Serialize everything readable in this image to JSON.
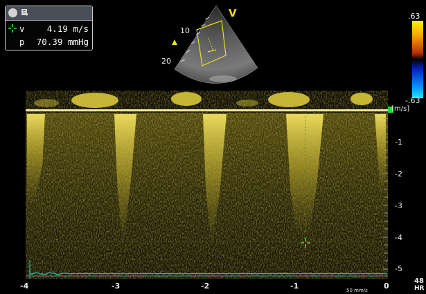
{
  "measurement": {
    "velocity_label": "v",
    "velocity_value": "4.19 m/s",
    "pressure_label": "p",
    "pressure_value": "70.39 mmHg"
  },
  "sector": {
    "marker": "V",
    "depth_10": "10",
    "depth_20": "20"
  },
  "color_bar": {
    "top": ".63",
    "bottom": "-.63"
  },
  "spectrum": {
    "unit": "[m/s]",
    "y_ticks": [
      "-1",
      "-2",
      "-3",
      "-4",
      "-5"
    ],
    "x_ticks": [
      "-4",
      "-3",
      "-2",
      "-1",
      "0"
    ],
    "sweep_speed": "50 mm/s",
    "hr_value": "48",
    "hr_label": "HR"
  },
  "colors": {
    "doppler": "#d2c22a",
    "ecg": "#34c6b4",
    "cursor": "#39e23e",
    "baseline_marker": "#1ddc2a"
  }
}
